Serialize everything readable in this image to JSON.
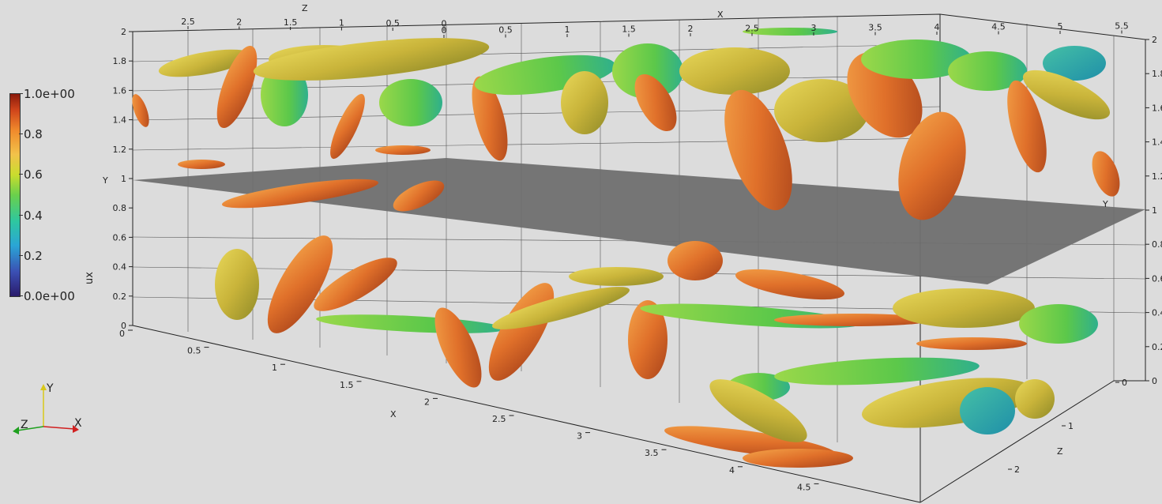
{
  "colorbar": {
    "title": "ux",
    "labels": [
      "1.0e+00",
      "0.8",
      "0.6",
      "0.4",
      "0.2",
      "0.0e+00"
    ]
  },
  "axes": {
    "x_name": "X",
    "y_name": "Y",
    "z_name": "Z",
    "x_ticks_front": [
      "0",
      "0.5",
      "1",
      "1.5",
      "2",
      "2.5",
      "3",
      "3.5",
      "4",
      "4.5"
    ],
    "x_ticks_top": [
      "0",
      "0.5",
      "1",
      "1.5",
      "2",
      "2.5",
      "3",
      "3.5",
      "4",
      "4.5",
      "5",
      "5.5"
    ],
    "z_ticks_top": [
      "2.5",
      "2",
      "1.5",
      "1",
      "0.5",
      "0"
    ],
    "z_ticks_right": [
      "0",
      "1",
      "2"
    ],
    "y_ticks_left": [
      "0",
      "0.2",
      "0.4",
      "0.6",
      "0.8",
      "1",
      "1.2",
      "1.4",
      "1.6",
      "1.8",
      "2"
    ],
    "y_ticks_right": [
      "0",
      "0.2",
      "0.4",
      "0.6",
      "0.8",
      "1",
      "1.2",
      "1.4",
      "1.6",
      "1.8",
      "2"
    ]
  },
  "orientation": {
    "x": "X",
    "y": "Y",
    "z": "Z",
    "x_color": "#d12020",
    "y_color": "#d8c81a",
    "z_color": "#1fa01f"
  },
  "colors": {
    "plane": "#6f6f6f",
    "background": "#dcdcdc"
  }
}
